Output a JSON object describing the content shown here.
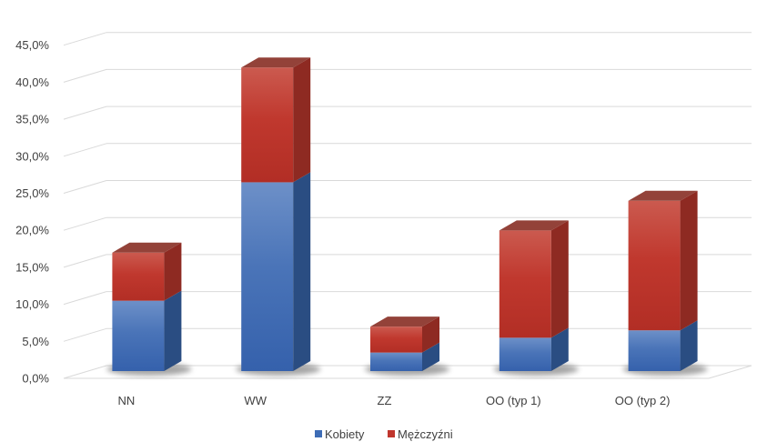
{
  "chart_data": {
    "type": "bar",
    "stacked": true,
    "three_d": true,
    "categories": [
      "NN",
      "WW",
      "ZZ",
      "OO (typ 1)",
      "OO (typ 2)"
    ],
    "series": [
      {
        "name": "Kobiety",
        "values": [
          9.5,
          25.5,
          2.5,
          4.5,
          5.5
        ],
        "color": "#3D6CB5"
      },
      {
        "name": "Mężczyźni",
        "values": [
          6.5,
          15.5,
          3.5,
          14.5,
          17.5
        ],
        "color": "#C0362D"
      }
    ],
    "ylim": [
      0,
      45
    ],
    "y_ticks": [
      "0,0%",
      "5,0%",
      "10,0%",
      "15,0%",
      "20,0%",
      "25,0%",
      "30,0%",
      "35,0%",
      "40,0%",
      "45,0%"
    ],
    "grid": true,
    "legend_position": "bottom"
  }
}
